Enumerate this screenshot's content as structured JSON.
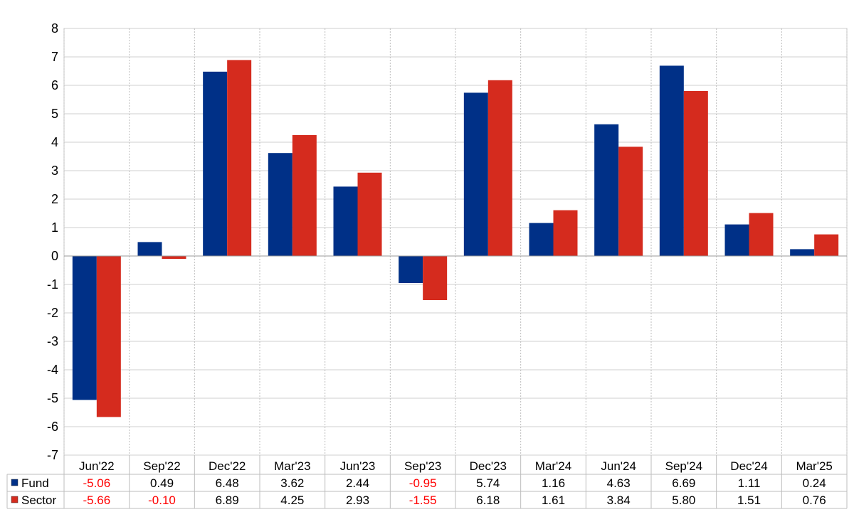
{
  "chart_data": {
    "type": "bar",
    "categories": [
      "Jun'22",
      "Sep'22",
      "Dec'22",
      "Mar'23",
      "Jun'23",
      "Sep'23",
      "Dec'23",
      "Mar'24",
      "Jun'24",
      "Sep'24",
      "Dec'24",
      "Mar'25"
    ],
    "series": [
      {
        "name": "Fund",
        "color": "#003087",
        "values": [
          -5.06,
          0.49,
          6.48,
          3.62,
          2.44,
          -0.95,
          5.74,
          1.16,
          4.63,
          6.69,
          1.11,
          0.24
        ],
        "labels": [
          "-5.06",
          "0.49",
          "6.48",
          "3.62",
          "2.44",
          "-0.95",
          "5.74",
          "1.16",
          "4.63",
          "6.69",
          "1.11",
          "0.24"
        ]
      },
      {
        "name": "Sector",
        "color": "#d52b1e",
        "values": [
          -5.66,
          -0.1,
          6.89,
          4.25,
          2.93,
          -1.55,
          6.18,
          1.61,
          3.84,
          5.8,
          1.51,
          0.76
        ],
        "labels": [
          "-5.66",
          "-0.10",
          "6.89",
          "4.25",
          "2.93",
          "-1.55",
          "6.18",
          "1.61",
          "3.84",
          "5.80",
          "1.51",
          "0.76"
        ]
      }
    ],
    "ylim": [
      -7,
      8
    ],
    "yticks": [
      "8",
      "7",
      "6",
      "5",
      "4",
      "3",
      "2",
      "1",
      "0",
      "-1",
      "-2",
      "-3",
      "-4",
      "-5",
      "-6",
      "-7"
    ],
    "grid": true,
    "legend": "data-table-below",
    "negative_value_color": "#ff0000"
  }
}
